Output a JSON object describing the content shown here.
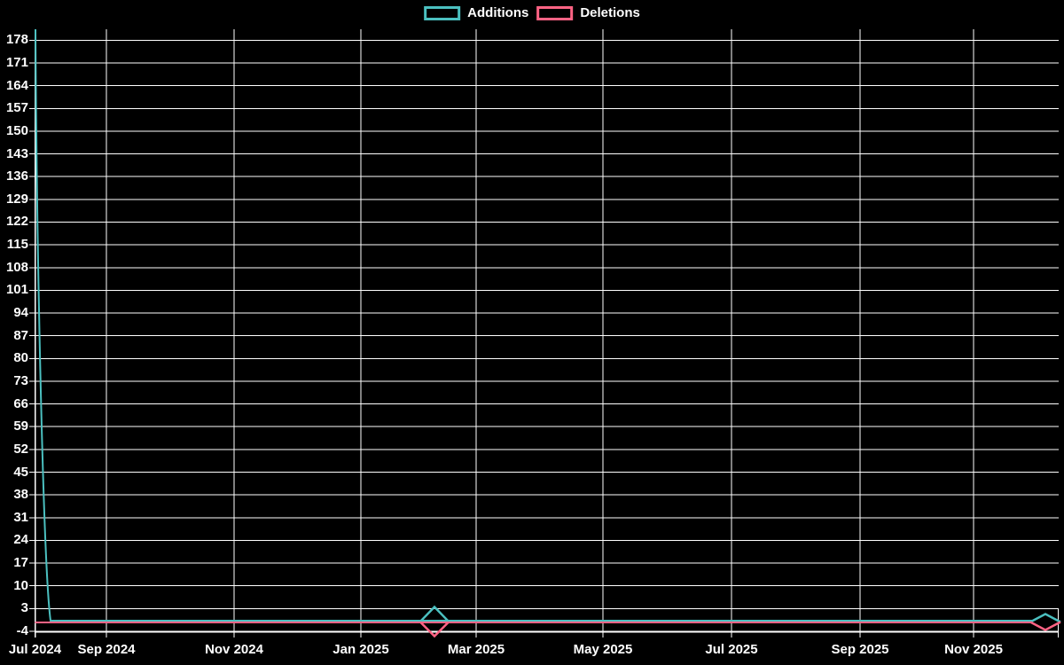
{
  "legend": {
    "items": [
      {
        "label": "Additions",
        "color": "#4bc0c0"
      },
      {
        "label": "Deletions",
        "color": "#ff6384"
      }
    ]
  },
  "chart_data": {
    "type": "line",
    "title": "",
    "legend_position": "top-center",
    "grid": true,
    "background_color": "#000000",
    "grid_color": "#ffffff",
    "text_color": "#ffffff",
    "x_axis": {
      "tick_labels": [
        "Jul 2024",
        "Sep 2024",
        "Nov 2024",
        "Jan 2025",
        "Mar 2025",
        "May 2025",
        "Jul 2025",
        "Sep 2025",
        "Nov 2025"
      ],
      "range_note": "time axis from late Jul 2024 to early Dec 2025"
    },
    "y_axis": {
      "tick_labels": [
        178,
        171,
        164,
        157,
        150,
        143,
        136,
        129,
        122,
        115,
        108,
        101,
        94,
        87,
        80,
        73,
        66,
        59,
        52,
        45,
        38,
        31,
        24,
        17,
        10,
        3,
        -4
      ],
      "min": -4,
      "max": 181
    },
    "series": [
      {
        "name": "Additions",
        "color": "#4bc0c0",
        "points": [
          {
            "x": "Jul 2024 (axis start)",
            "y": 181
          },
          {
            "x": "Aug 2024",
            "y": 0
          },
          {
            "x": "Feb 2025",
            "y": 0,
            "marker": "diamond-open"
          },
          {
            "x": "Dec 2025 (axis end)",
            "y": 0,
            "marker": "diamond-open"
          }
        ]
      },
      {
        "name": "Deletions",
        "color": "#ff6384",
        "points": [
          {
            "x": "Jul 2024 (axis start)",
            "y": 0
          },
          {
            "x": "Feb 2025",
            "y": 0,
            "marker": "diamond-open"
          },
          {
            "x": "Dec 2025 (axis end)",
            "y": 0,
            "marker": "diamond-open"
          }
        ]
      }
    ]
  }
}
